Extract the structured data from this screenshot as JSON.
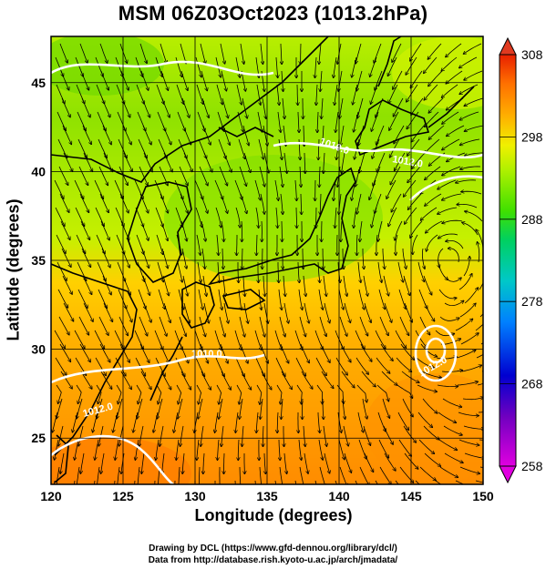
{
  "title": "MSM 06Z03Oct2023 (1013.2hPa)",
  "axes": {
    "xlabel": "Longitude (degrees)",
    "ylabel": "Latitude  (degrees)",
    "x_ticks": [
      "120",
      "125",
      "130",
      "135",
      "140",
      "145",
      "150"
    ],
    "y_ticks": [
      "25",
      "30",
      "35",
      "40",
      "45"
    ],
    "x_range": [
      120,
      150
    ],
    "y_range": [
      22.4,
      47.6
    ]
  },
  "colorbar": {
    "ticks": [
      "258",
      "268",
      "278",
      "288",
      "298",
      "308"
    ],
    "range": [
      258,
      308
    ],
    "colors": [
      "#e000e0",
      "#7000c0",
      "#0000d0",
      "#0080ff",
      "#00c8c8",
      "#00d060",
      "#40e000",
      "#b0f000",
      "#f0f000",
      "#ffb000",
      "#ff7000",
      "#e82000"
    ]
  },
  "contour_labels": [
    "1010.0",
    "1012.0",
    "1012.0",
    "1010.0",
    "1012.0"
  ],
  "credits": {
    "line1": "Drawing by DCL (https://www.gfd-dennou.org/library/dcl/)",
    "line2": "Data from http://database.rish.kyoto-u.ac.jp/arch/jmadata/"
  },
  "colors": {
    "cold_field": "#9be600",
    "warm_field": "#ff9f00",
    "coast": "#000000",
    "contour": "#ffffff"
  }
}
